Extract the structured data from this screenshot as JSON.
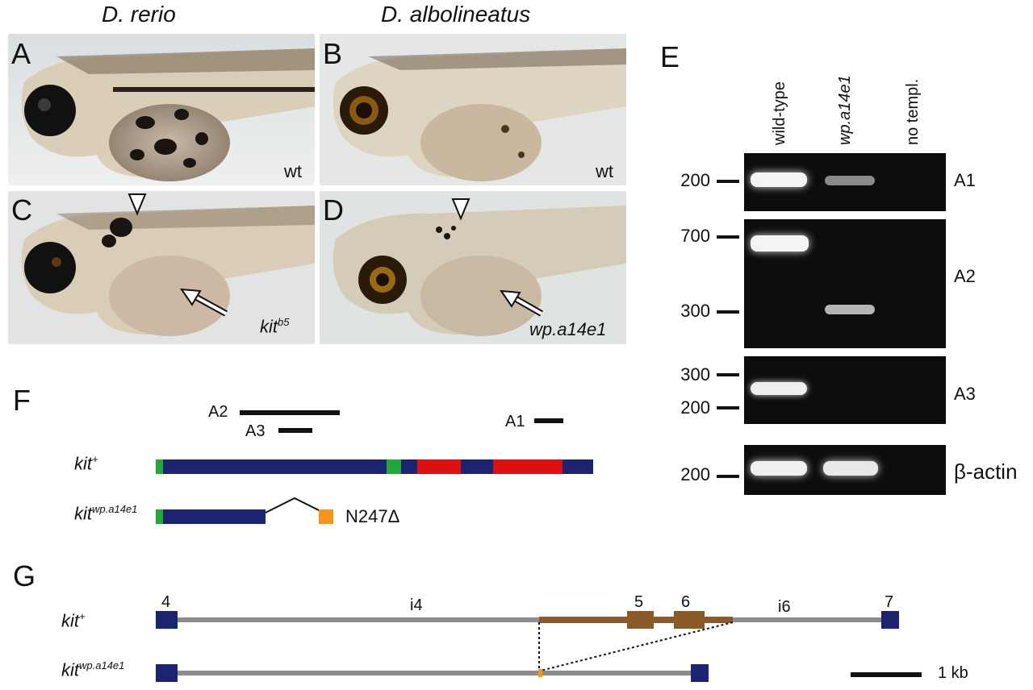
{
  "species": {
    "left": "D. rerio",
    "right": "D. albolineatus"
  },
  "panels": {
    "A": {
      "letter": "A",
      "genotype": "wt"
    },
    "B": {
      "letter": "B",
      "genotype": "wt"
    },
    "C": {
      "letter": "C",
      "genotype": "kit",
      "genotype_sup": "b5"
    },
    "D": {
      "letter": "D",
      "genotype": "wp.a14e1"
    },
    "E": {
      "letter": "E"
    },
    "F": {
      "letter": "F"
    },
    "G": {
      "letter": "G"
    }
  },
  "gel": {
    "lanes": [
      "wild-type",
      "wp.a14e1",
      "no templ."
    ],
    "strips": [
      {
        "name": "A1",
        "markers": [
          "200"
        ]
      },
      {
        "name": "A2",
        "markers": [
          "700",
          "300"
        ]
      },
      {
        "name": "A3",
        "markers": [
          "300",
          "200"
        ]
      },
      {
        "name": "β-actin",
        "markers": [
          "200"
        ]
      }
    ]
  },
  "panel_f": {
    "amplicons": [
      "A2",
      "A3",
      "A1"
    ],
    "wt_label": "kit",
    "wt_sup": "+",
    "mut_label": "kit",
    "mut_sup": "wp.a14e1",
    "mut_note": "N247Δ",
    "colors": {
      "exon": "#1c2370",
      "green": "#22a83a",
      "red": "#dd1111",
      "orange": "#f7941d"
    }
  },
  "panel_g": {
    "exons": [
      "4",
      "5",
      "6",
      "7"
    ],
    "introns": [
      "i4",
      "i6"
    ],
    "wt_label": "kit",
    "wt_sup": "+",
    "mut_label": "kit",
    "mut_sup": "wp.a14e1",
    "scale_label": "1 kb",
    "colors": {
      "line": "#8c8c8c",
      "deleted": "#8b5a2b"
    }
  }
}
